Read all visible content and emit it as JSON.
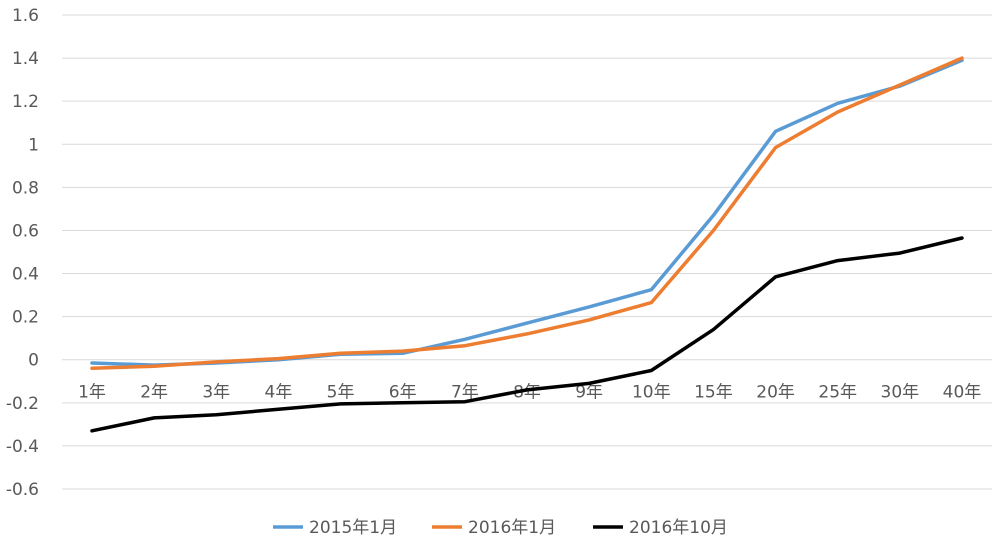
{
  "chart_data": {
    "type": "line",
    "categories": [
      "1年",
      "2年",
      "3年",
      "4年",
      "5年",
      "6年",
      "7年",
      "8年",
      "9年",
      "10年",
      "15年",
      "20年",
      "25年",
      "30年",
      "40年"
    ],
    "series": [
      {
        "name": "2015年1月",
        "color": "#5b9bd5",
        "values": [
          -0.015,
          -0.025,
          -0.015,
          0.0,
          0.025,
          0.03,
          0.095,
          0.17,
          0.245,
          0.325,
          0.67,
          1.06,
          1.19,
          1.27,
          1.39
        ]
      },
      {
        "name": "2016年1月",
        "color": "#ed7d31",
        "values": [
          -0.04,
          -0.03,
          -0.01,
          0.005,
          0.03,
          0.04,
          0.065,
          0.12,
          0.185,
          0.265,
          0.6,
          0.985,
          1.15,
          1.275,
          1.4
        ]
      },
      {
        "name": "2016年10月",
        "color": "#000000",
        "values": [
          -0.33,
          -0.27,
          -0.255,
          -0.23,
          -0.205,
          -0.2,
          -0.195,
          -0.14,
          -0.11,
          -0.05,
          0.14,
          0.385,
          0.46,
          0.495,
          0.565
        ]
      }
    ],
    "yticks": [
      "1.6",
      "1.4",
      "1.2",
      "1",
      "0.8",
      "0.6",
      "0.4",
      "0.2",
      "0",
      "-0.2",
      "-0.4",
      "-0.6"
    ],
    "ylim": [
      -0.6,
      1.6
    ],
    "grid": true,
    "legend": "bottom"
  }
}
